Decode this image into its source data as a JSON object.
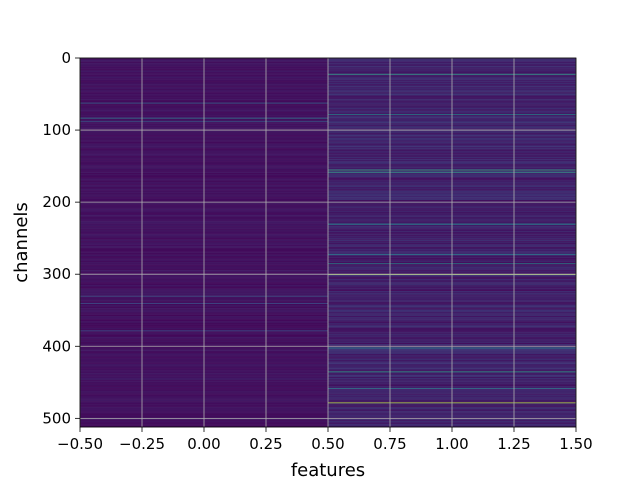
{
  "chart_data": {
    "type": "heatmap",
    "title": "",
    "xlabel": "features",
    "ylabel": "channels",
    "xlim": [
      -0.5,
      1.5
    ],
    "ylim": [
      512,
      0
    ],
    "x_ticks": [
      -0.5,
      -0.25,
      0.0,
      0.25,
      0.5,
      0.75,
      1.0,
      1.25,
      1.5
    ],
    "x_tick_labels": [
      "−0.50",
      "−0.25",
      "0.00",
      "0.25",
      "0.50",
      "0.75",
      "1.00",
      "1.25",
      "1.50"
    ],
    "y_ticks": [
      0,
      100,
      200,
      300,
      400,
      500
    ],
    "y_tick_labels": [
      "0",
      "100",
      "200",
      "300",
      "400",
      "500"
    ],
    "grid": true,
    "colormap": "viridis",
    "n_rows": 512,
    "n_cols": 2,
    "col_centers": [
      0,
      1
    ],
    "background_levels": [
      0.05,
      0.1
    ],
    "highlights": [
      {
        "col": 0,
        "row": 62,
        "value": 0.32
      },
      {
        "col": 0,
        "row": 83,
        "value": 0.4
      },
      {
        "col": 0,
        "row": 88,
        "value": 0.3
      },
      {
        "col": 0,
        "row": 330,
        "value": 0.28
      },
      {
        "col": 0,
        "row": 340,
        "value": 0.25
      },
      {
        "col": 0,
        "row": 378,
        "value": 0.22
      },
      {
        "col": 1,
        "row": 22,
        "value": 0.55
      },
      {
        "col": 1,
        "row": 78,
        "value": 0.45
      },
      {
        "col": 1,
        "row": 155,
        "value": 0.6
      },
      {
        "col": 1,
        "row": 158,
        "value": 0.55
      },
      {
        "col": 1,
        "row": 230,
        "value": 0.5
      },
      {
        "col": 1,
        "row": 272,
        "value": 0.4
      },
      {
        "col": 1,
        "row": 285,
        "value": 0.48
      },
      {
        "col": 1,
        "row": 300,
        "value": 0.85
      },
      {
        "col": 1,
        "row": 322,
        "value": 0.0
      },
      {
        "col": 1,
        "row": 402,
        "value": 0.45
      },
      {
        "col": 1,
        "row": 435,
        "value": 0.55
      },
      {
        "col": 1,
        "row": 458,
        "value": 0.4
      },
      {
        "col": 1,
        "row": 478,
        "value": 0.9
      }
    ]
  }
}
